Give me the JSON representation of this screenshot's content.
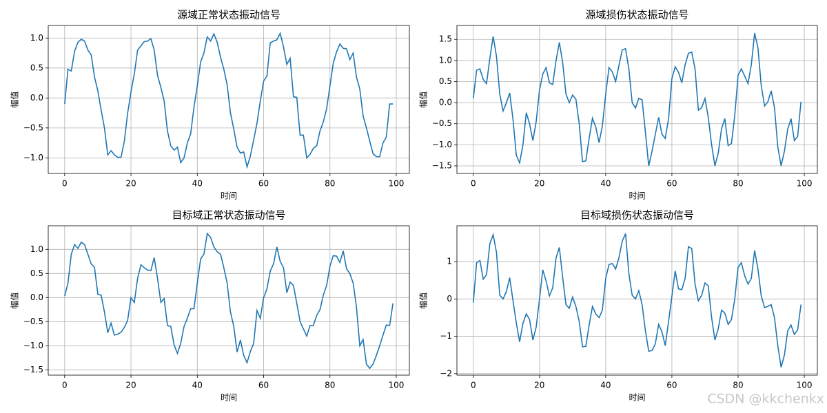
{
  "chart_data": [
    {
      "type": "line",
      "title": "源域正常状态振动信号",
      "xlabel": "时间",
      "ylabel": "幅值",
      "x": [
        0,
        1,
        2,
        3,
        4,
        5,
        6,
        7,
        8,
        9,
        10,
        11,
        12,
        13,
        14,
        15,
        16,
        17,
        18,
        19,
        20,
        21,
        22,
        23,
        24,
        25,
        26,
        27,
        28,
        29,
        30,
        31,
        32,
        33,
        34,
        35,
        36,
        37,
        38,
        39,
        40,
        41,
        42,
        43,
        44,
        45,
        46,
        47,
        48,
        49,
        50,
        51,
        52,
        53,
        54,
        55,
        56,
        57,
        58,
        59,
        60,
        61,
        62,
        63,
        64,
        65,
        66,
        67,
        68,
        69,
        70,
        71,
        72,
        73,
        74,
        75,
        76,
        77,
        78,
        79,
        80,
        81,
        82,
        83,
        84,
        85,
        86,
        87,
        88,
        89,
        90,
        91,
        92,
        93,
        94,
        95,
        96,
        97,
        98,
        99
      ],
      "series": [
        {
          "color": "#1f77b4",
          "values": [
            -0.1,
            0.48,
            0.45,
            0.78,
            0.93,
            0.98,
            0.95,
            0.8,
            0.72,
            0.35,
            0.12,
            -0.2,
            -0.5,
            -0.95,
            -0.88,
            -0.95,
            -0.99,
            -0.99,
            -0.72,
            -0.25,
            0.1,
            0.4,
            0.8,
            0.87,
            0.94,
            0.95,
            0.99,
            0.8,
            0.38,
            0.18,
            -0.05,
            -0.55,
            -0.8,
            -0.87,
            -0.82,
            -1.08,
            -1.0,
            -0.75,
            -0.6,
            -0.15,
            0.2,
            0.6,
            0.75,
            1.02,
            0.95,
            1.07,
            0.93,
            0.68,
            0.48,
            0.22,
            -0.25,
            -0.52,
            -0.82,
            -0.92,
            -0.9,
            -1.15,
            -0.97,
            -0.7,
            -0.42,
            -0.05,
            0.28,
            0.37,
            0.92,
            0.95,
            0.97,
            1.08,
            0.85,
            0.56,
            0.66,
            0.02,
            0.01,
            -0.62,
            -0.62,
            -1.0,
            -0.94,
            -0.84,
            -0.8,
            -0.55,
            -0.4,
            -0.18,
            0.2,
            0.58,
            0.77,
            0.9,
            0.83,
            0.82,
            0.64,
            0.75,
            0.35,
            0.15,
            -0.3,
            -0.5,
            -0.72,
            -0.93,
            -0.98,
            -0.98,
            -0.75,
            -0.65,
            -0.1,
            -0.1
          ]
        }
      ],
      "xlim": [
        -4.95,
        103.95
      ],
      "ylim": [
        -1.26,
        1.21
      ],
      "xticks": [
        0,
        20,
        40,
        60,
        80,
        100
      ],
      "yticks": [
        {
          "value": -1,
          "label": "−1.0"
        },
        {
          "value": -0.5,
          "label": "−0.5"
        },
        {
          "value": 0,
          "label": "0.0"
        },
        {
          "value": 0.5,
          "label": "0.5"
        },
        {
          "value": 1,
          "label": "1.0"
        }
      ],
      "grid": true
    },
    {
      "type": "line",
      "title": "源域损伤状态振动信号",
      "xlabel": "时间",
      "ylabel": "幅值",
      "x": [
        0,
        1,
        2,
        3,
        4,
        5,
        6,
        7,
        8,
        9,
        10,
        11,
        12,
        13,
        14,
        15,
        16,
        17,
        18,
        19,
        20,
        21,
        22,
        23,
        24,
        25,
        26,
        27,
        28,
        29,
        30,
        31,
        32,
        33,
        34,
        35,
        36,
        37,
        38,
        39,
        40,
        41,
        42,
        43,
        44,
        45,
        46,
        47,
        48,
        49,
        50,
        51,
        52,
        53,
        54,
        55,
        56,
        57,
        58,
        59,
        60,
        61,
        62,
        63,
        64,
        65,
        66,
        67,
        68,
        69,
        70,
        71,
        72,
        73,
        74,
        75,
        76,
        77,
        78,
        79,
        80,
        81,
        82,
        83,
        84,
        85,
        86,
        87,
        88,
        89,
        90,
        91,
        92,
        93,
        94,
        95,
        96,
        97,
        98,
        99
      ],
      "series": [
        {
          "color": "#1f77b4",
          "values": [
            0.1,
            0.77,
            0.8,
            0.55,
            0.45,
            1.05,
            1.57,
            1.1,
            0.2,
            -0.2,
            0.0,
            0.23,
            -0.4,
            -1.25,
            -1.43,
            -1.0,
            -0.24,
            -0.5,
            -0.9,
            -0.45,
            0.3,
            0.68,
            0.83,
            0.47,
            0.43,
            1.0,
            1.43,
            0.95,
            0.2,
            0.0,
            0.18,
            0.08,
            -0.5,
            -1.4,
            -1.38,
            -0.85,
            -0.37,
            -0.58,
            -0.95,
            -0.55,
            0.2,
            0.83,
            0.73,
            0.5,
            0.88,
            1.25,
            1.28,
            0.8,
            0.0,
            -0.13,
            0.1,
            0.07,
            -0.7,
            -1.5,
            -1.15,
            -0.75,
            -0.35,
            -0.75,
            -0.85,
            -0.38,
            0.57,
            0.85,
            0.72,
            0.47,
            0.9,
            1.17,
            1.2,
            0.8,
            -0.18,
            -0.12,
            0.1,
            -0.35,
            -1.0,
            -1.5,
            -1.2,
            -0.62,
            -0.38,
            -1.02,
            -0.97,
            -0.3,
            0.65,
            0.8,
            0.63,
            0.45,
            0.9,
            1.65,
            1.3,
            0.4,
            -0.08,
            0.02,
            0.28,
            -0.12,
            -1.05,
            -1.5,
            -1.15,
            -0.63,
            -0.38,
            -0.9,
            -0.8,
            0.02
          ]
        }
      ],
      "xlim": [
        -4.95,
        103.95
      ],
      "ylim": [
        -1.68,
        1.83
      ],
      "xticks": [
        0,
        20,
        40,
        60,
        80,
        100
      ],
      "yticks": [
        {
          "value": -1.5,
          "label": "−1.5"
        },
        {
          "value": -1,
          "label": "−1.0"
        },
        {
          "value": -0.5,
          "label": "−0.5"
        },
        {
          "value": 0,
          "label": "0.0"
        },
        {
          "value": 0.5,
          "label": "0.5"
        },
        {
          "value": 1,
          "label": "1.0"
        },
        {
          "value": 1.5,
          "label": "1.5"
        }
      ],
      "grid": true
    },
    {
      "type": "line",
      "title": "目标域正常状态振动信号",
      "xlabel": "时间",
      "ylabel": "幅值",
      "x": [
        0,
        1,
        2,
        3,
        4,
        5,
        6,
        7,
        8,
        9,
        10,
        11,
        12,
        13,
        14,
        15,
        16,
        17,
        18,
        19,
        20,
        21,
        22,
        23,
        24,
        25,
        26,
        27,
        28,
        29,
        30,
        31,
        32,
        33,
        34,
        35,
        36,
        37,
        38,
        39,
        40,
        41,
        42,
        43,
        44,
        45,
        46,
        47,
        48,
        49,
        50,
        51,
        52,
        53,
        54,
        55,
        56,
        57,
        58,
        59,
        60,
        61,
        62,
        63,
        64,
        65,
        66,
        67,
        68,
        69,
        70,
        71,
        72,
        73,
        74,
        75,
        76,
        77,
        78,
        79,
        80,
        81,
        82,
        83,
        84,
        85,
        86,
        87,
        88,
        89,
        90,
        91,
        92,
        93,
        94,
        95,
        96,
        97,
        98,
        99
      ],
      "series": [
        {
          "color": "#1f77b4",
          "values": [
            0.03,
            0.3,
            0.9,
            1.1,
            1.02,
            1.15,
            1.1,
            0.9,
            0.7,
            0.63,
            0.07,
            0.05,
            -0.3,
            -0.73,
            -0.53,
            -0.78,
            -0.76,
            -0.72,
            -0.62,
            -0.47,
            0.0,
            -0.1,
            0.4,
            0.68,
            0.62,
            0.57,
            0.56,
            0.83,
            0.4,
            -0.1,
            -0.02,
            -0.58,
            -0.6,
            -0.98,
            -1.16,
            -0.95,
            -0.6,
            -0.43,
            -0.23,
            -0.23,
            0.3,
            0.8,
            0.9,
            1.33,
            1.25,
            1.05,
            0.95,
            0.9,
            0.62,
            0.3,
            -0.3,
            -0.6,
            -1.13,
            -0.88,
            -1.2,
            -1.35,
            -1.12,
            -0.95,
            -0.27,
            -0.43,
            0.0,
            0.18,
            0.55,
            0.7,
            1.05,
            0.75,
            0.62,
            0.1,
            0.32,
            0.25,
            -0.12,
            -0.5,
            -0.65,
            -0.8,
            -0.58,
            -0.58,
            -0.37,
            -0.25,
            0.05,
            0.25,
            0.65,
            0.87,
            0.86,
            0.73,
            0.97,
            0.6,
            0.5,
            0.3,
            -0.2,
            -1.0,
            -0.87,
            -1.38,
            -1.47,
            -1.38,
            -1.2,
            -1.0,
            -0.78,
            -0.57,
            -0.58,
            -0.12
          ]
        }
      ],
      "xlim": [
        -4.95,
        103.95
      ],
      "ylim": [
        -1.61,
        1.49
      ],
      "xticks": [
        0,
        20,
        40,
        60,
        80,
        100
      ],
      "yticks": [
        {
          "value": -1.5,
          "label": "−1.5"
        },
        {
          "value": -1,
          "label": "−1.0"
        },
        {
          "value": -0.5,
          "label": "−0.5"
        },
        {
          "value": 0,
          "label": "0.0"
        },
        {
          "value": 0.5,
          "label": "0.5"
        },
        {
          "value": 1,
          "label": "1.0"
        }
      ],
      "grid": true
    },
    {
      "type": "line",
      "title": "目标域损伤状态振动信号",
      "xlabel": "时间",
      "ylabel": "幅值",
      "x": [
        0,
        1,
        2,
        3,
        4,
        5,
        6,
        7,
        8,
        9,
        10,
        11,
        12,
        13,
        14,
        15,
        16,
        17,
        18,
        19,
        20,
        21,
        22,
        23,
        24,
        25,
        26,
        27,
        28,
        29,
        30,
        31,
        32,
        33,
        34,
        35,
        36,
        37,
        38,
        39,
        40,
        41,
        42,
        43,
        44,
        45,
        46,
        47,
        48,
        49,
        50,
        51,
        52,
        53,
        54,
        55,
        56,
        57,
        58,
        59,
        60,
        61,
        62,
        63,
        64,
        65,
        66,
        67,
        68,
        69,
        70,
        71,
        72,
        73,
        74,
        75,
        76,
        77,
        78,
        79,
        80,
        81,
        82,
        83,
        84,
        85,
        86,
        87,
        88,
        89,
        90,
        91,
        92,
        93,
        94,
        95,
        96,
        97,
        98,
        99
      ],
      "series": [
        {
          "color": "#1f77b4",
          "values": [
            -0.1,
            0.97,
            1.03,
            0.53,
            0.65,
            1.48,
            1.72,
            1.25,
            0.1,
            0.0,
            0.2,
            0.57,
            -0.05,
            -0.65,
            -1.15,
            -0.65,
            -0.4,
            -0.55,
            -1.1,
            -0.75,
            0.0,
            0.78,
            0.48,
            0.08,
            0.3,
            1.1,
            1.38,
            0.58,
            -0.15,
            -0.25,
            0.05,
            -0.2,
            -0.6,
            -1.28,
            -1.27,
            -0.7,
            -0.2,
            -0.4,
            -0.5,
            -0.3,
            0.55,
            0.92,
            0.95,
            0.8,
            1.1,
            1.55,
            1.75,
            0.68,
            0.1,
            0.0,
            0.22,
            -0.15,
            -0.85,
            -1.4,
            -1.38,
            -1.2,
            -0.68,
            -0.88,
            -1.25,
            -0.6,
            0.07,
            0.75,
            0.27,
            0.25,
            0.55,
            1.4,
            1.35,
            0.4,
            -0.05,
            0.1,
            0.43,
            0.35,
            -0.5,
            -1.1,
            -0.8,
            -0.3,
            -0.38,
            -0.68,
            -0.55,
            0.0,
            0.85,
            0.97,
            0.62,
            0.4,
            0.55,
            1.3,
            0.8,
            0.08,
            -0.23,
            -0.2,
            -0.15,
            -0.5,
            -1.25,
            -1.83,
            -1.5,
            -0.85,
            -0.7,
            -0.95,
            -0.83,
            -0.15
          ]
        }
      ],
      "xlim": [
        -4.95,
        103.95
      ],
      "ylim": [
        -2.04,
        1.96
      ],
      "xticks": [
        0,
        20,
        40,
        60,
        80,
        100
      ],
      "yticks": [
        {
          "value": -2,
          "label": "−2"
        },
        {
          "value": -1,
          "label": "−1"
        },
        0,
        1
      ],
      "grid": true
    }
  ],
  "watermark": "CSDN @kkchenkx"
}
